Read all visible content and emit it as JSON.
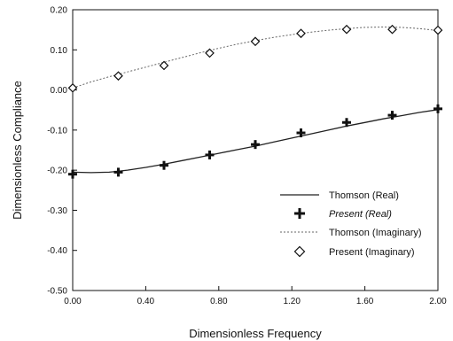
{
  "chart_data": {
    "type": "line",
    "xlabel": "Dimensionless Frequency",
    "ylabel": "Dimensionless Compliance",
    "xlim": [
      0.0,
      2.0
    ],
    "ylim": [
      -0.5,
      0.2
    ],
    "xticks": [
      "0.00",
      "0.40",
      "0.80",
      "1.20",
      "1.60",
      "2.00"
    ],
    "xtick_values": [
      0.0,
      0.4,
      0.8,
      1.2,
      1.6,
      2.0
    ],
    "yticks": [
      "0.20",
      "0.10",
      "0.00",
      "-0.10",
      "-0.20",
      "-0.30",
      "-0.40",
      "-0.50"
    ],
    "ytick_values": [
      0.2,
      0.1,
      0.0,
      -0.1,
      -0.2,
      -0.3,
      -0.4,
      -0.5
    ],
    "grid": false,
    "legend_position": "lower-right",
    "series": [
      {
        "name": "Thomson (Real)",
        "style": "solid-line",
        "color": "#222222",
        "x": [
          0.0,
          0.1,
          0.2,
          0.3,
          0.4,
          0.5,
          0.6,
          0.7,
          0.8,
          0.9,
          1.0,
          1.1,
          1.2,
          1.3,
          1.4,
          1.5,
          1.6,
          1.7,
          1.8,
          1.9,
          2.0
        ],
        "y": [
          -0.205,
          -0.206,
          -0.205,
          -0.2,
          -0.193,
          -0.185,
          -0.176,
          -0.167,
          -0.158,
          -0.149,
          -0.14,
          -0.13,
          -0.12,
          -0.11,
          -0.1,
          -0.09,
          -0.081,
          -0.072,
          -0.064,
          -0.056,
          -0.049
        ]
      },
      {
        "name": "Present (Real)",
        "style": "plus-marker",
        "color": "#111111",
        "x": [
          0.0,
          0.25,
          0.5,
          0.75,
          1.0,
          1.25,
          1.5,
          1.75,
          2.0
        ],
        "y": [
          -0.21,
          -0.205,
          -0.188,
          -0.162,
          -0.136,
          -0.107,
          -0.081,
          -0.063,
          -0.047
        ]
      },
      {
        "name": "Thomson (Imaginary)",
        "style": "dotted-line",
        "color": "#666666",
        "x": [
          0.0,
          0.1,
          0.2,
          0.3,
          0.4,
          0.5,
          0.6,
          0.7,
          0.8,
          0.9,
          1.0,
          1.1,
          1.2,
          1.3,
          1.4,
          1.5,
          1.6,
          1.7,
          1.8,
          1.9,
          2.0
        ],
        "y": [
          0.005,
          0.02,
          0.033,
          0.045,
          0.057,
          0.069,
          0.081,
          0.093,
          0.104,
          0.114,
          0.123,
          0.131,
          0.138,
          0.144,
          0.149,
          0.153,
          0.156,
          0.157,
          0.156,
          0.153,
          0.148
        ]
      },
      {
        "name": "Present (Imaginary)",
        "style": "diamond-marker",
        "color": "#111111",
        "x": [
          0.0,
          0.25,
          0.5,
          0.75,
          1.0,
          1.25,
          1.5,
          1.75,
          2.0
        ],
        "y": [
          0.005,
          0.035,
          0.061,
          0.092,
          0.121,
          0.141,
          0.151,
          0.151,
          0.149
        ]
      }
    ],
    "legend": [
      {
        "label": "Thomson (Real)",
        "series": 0
      },
      {
        "label": "Present  (Real)",
        "series": 1
      },
      {
        "label": "Thomson (Imaginary)",
        "series": 2
      },
      {
        "label": "Present  (Imaginary)",
        "series": 3
      }
    ]
  }
}
